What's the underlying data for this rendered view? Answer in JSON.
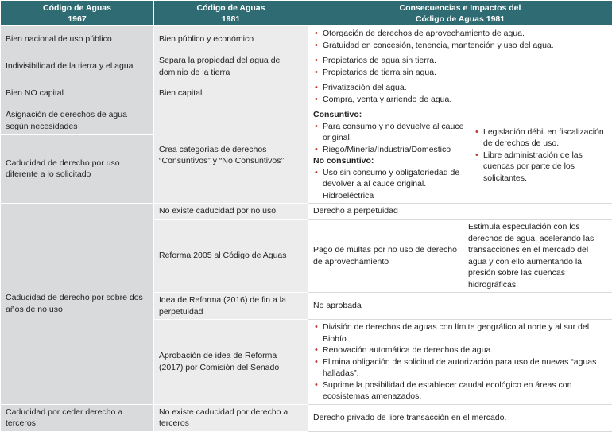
{
  "headers": {
    "col1": [
      "Código de Aguas",
      "1967"
    ],
    "col2": [
      "Código de Aguas",
      "1981"
    ],
    "col3": [
      "Consecuencias e Impactos del",
      "Código de Aguas 1981"
    ]
  },
  "r1": {
    "c1": "Bien nacional de uso público",
    "c2": "Bien público y económico",
    "c3": [
      "Otorgación de derechos de aprovechamiento de agua.",
      "Gratuidad en concesión, tenencia, mantención y uso del agua."
    ]
  },
  "r2": {
    "c1": "Indivisibilidad de la tierra y el agua",
    "c2": "Separa la propiedad del agua del dominio de la tierra",
    "c3": [
      "Propietarios de agua sin tierra.",
      "Propietarios de tierra sin agua."
    ]
  },
  "r3": {
    "c1": "Bien NO capital",
    "c2": "Bien capital",
    "c3": [
      "Privatización del agua.",
      "Compra, venta y arriendo de agua."
    ]
  },
  "r4": {
    "c1a": "Asignación de derechos de agua según necesidades",
    "c1b": "Caducidad de derecho por uso diferente a lo solicitado",
    "c2": "Crea categorías de derechos “Consuntivos” y “No Consuntivos”",
    "consuntivo_title": "Consuntivo:",
    "consuntivo": [
      "Para consumo y no devuelve al cauce original.",
      "Riego/Minería/Industria/Domestico"
    ],
    "no_consuntivo_title": "No consuntivo:",
    "no_consuntivo": [
      "Uso sin consumo y obligatoriedad de devolver a al cauce original. Hidroeléctrica"
    ],
    "right": [
      "Legislación débil en fiscalización de derechos de uso.",
      "Libre administración de las cuencas por parte de los solicitantes."
    ]
  },
  "r5": {
    "c1": "Caducidad de derecho por sobre dos años de no uso",
    "s1": {
      "c2": "No existe caducidad por no uso",
      "c3": "Derecho a perpetuidad"
    },
    "s2": {
      "c2": "Reforma 2005 al Código de Aguas",
      "c3": "Pago de multas por no uso de derecho de aprovechamiento",
      "c3b": "Estimula especulación con los derechos de agua, acelerando las transacciones en el mercado del agua y con ello aumentando la presión sobre las cuencas hidrográficas."
    },
    "s3": {
      "c2": "Idea de Reforma (2016) de fin a la perpetuidad",
      "c3": "No aprobada"
    },
    "s4": {
      "c2": "Aprobación de idea de Reforma (2017) por Comisión del Senado",
      "c3": [
        "División de derechos de aguas con límite geográfico al norte y al sur del Biobío.",
        "Renovación automática de derechos de agua.",
        "Elimina obligación de solicitud de autorización para uso de nuevas “aguas halladas”.",
        "Suprime la posibilidad de establecer caudal ecológico en áreas con ecosistemas amenazados."
      ]
    }
  },
  "r6": {
    "c1": "Caducidad por ceder derecho a terceros",
    "c2": "No existe caducidad por derecho a terceros",
    "c3": "Derecho privado de libre transacción en el mercado."
  }
}
